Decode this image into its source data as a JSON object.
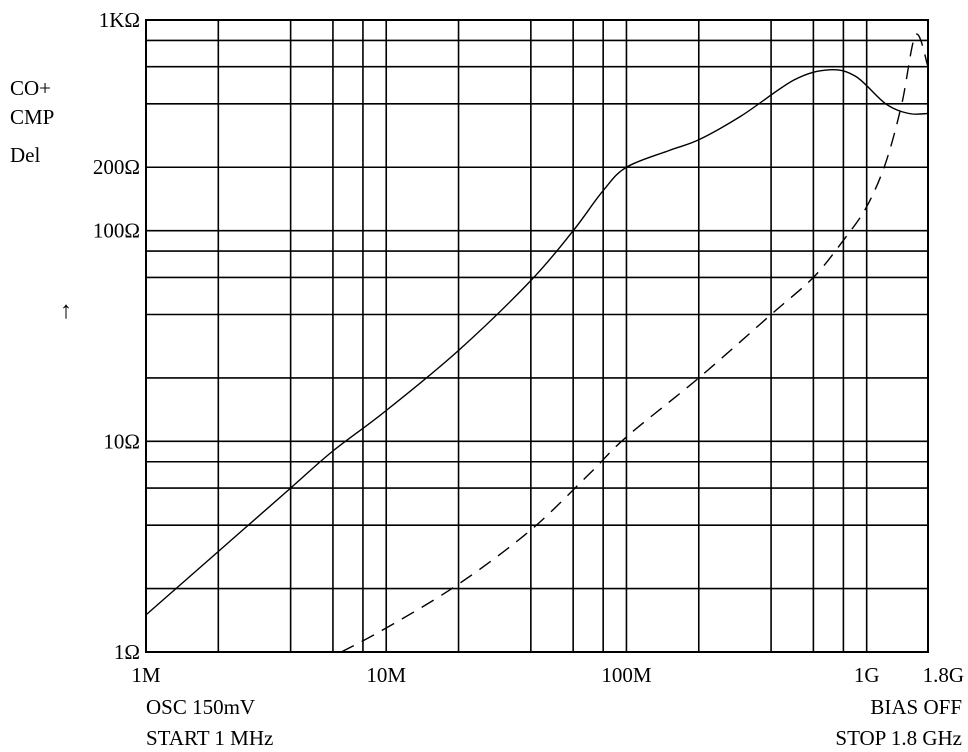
{
  "chart_data": {
    "type": "line",
    "scale": {
      "x": "log",
      "y": "log"
    },
    "xlim": [
      1000000,
      1800000000
    ],
    "ylim": [
      1,
      1000
    ],
    "x_ticks": [
      {
        "value": 1000000,
        "label": "1M"
      },
      {
        "value": 10000000,
        "label": "10M"
      },
      {
        "value": 100000000,
        "label": "100M"
      },
      {
        "value": 1000000000,
        "label": "1G"
      },
      {
        "value": 1800000000,
        "label": "1.8G"
      }
    ],
    "y_ticks": [
      {
        "value": 1,
        "label": "1Ω"
      },
      {
        "value": 10,
        "label": "10Ω"
      },
      {
        "value": 100,
        "label": "100Ω"
      },
      {
        "value": 200,
        "label": "200Ω"
      },
      {
        "value": 1000,
        "label": "1KΩ"
      }
    ],
    "x_grid": [
      1000000,
      2000000,
      4000000,
      6000000,
      8000000,
      10000000,
      20000000,
      40000000,
      60000000,
      80000000,
      100000000,
      200000000,
      400000000,
      600000000,
      800000000,
      1000000000,
      1800000000
    ],
    "y_grid": [
      1,
      2,
      4,
      6,
      8,
      10,
      20,
      40,
      60,
      80,
      100,
      200,
      400,
      600,
      800,
      1000
    ],
    "y_side_label": [
      "CO+",
      "CMP",
      "Del"
    ],
    "y_arrow": "↑",
    "series": [
      {
        "style": "solid",
        "x": [
          1000000,
          2000000,
          4000000,
          6000000,
          10000000,
          20000000,
          40000000,
          60000000,
          80000000,
          100000000,
          150000000,
          200000000,
          300000000,
          500000000,
          700000000,
          900000000,
          1200000000,
          1500000000,
          1800000000
        ],
        "y": [
          1.5,
          3,
          6,
          9,
          14,
          27,
          58,
          100,
          155,
          200,
          240,
          270,
          350,
          520,
          580,
          540,
          400,
          360,
          360
        ]
      },
      {
        "style": "dashed",
        "x": [
          6500000,
          10000000,
          20000000,
          40000000,
          70000000,
          100000000,
          200000000,
          400000000,
          600000000,
          800000000,
          1000000000,
          1200000000,
          1400000000,
          1600000000,
          1800000000
        ],
        "y": [
          1,
          1.3,
          2.1,
          3.8,
          7,
          10.5,
          20,
          40,
          60,
          90,
          130,
          210,
          400,
          850,
          600
        ]
      }
    ]
  },
  "annotations": {
    "osc": "OSC  150mV",
    "start": "START  1  MHz",
    "bias": "BIAS OFF",
    "stop": "STOP  1.8  GHz"
  }
}
